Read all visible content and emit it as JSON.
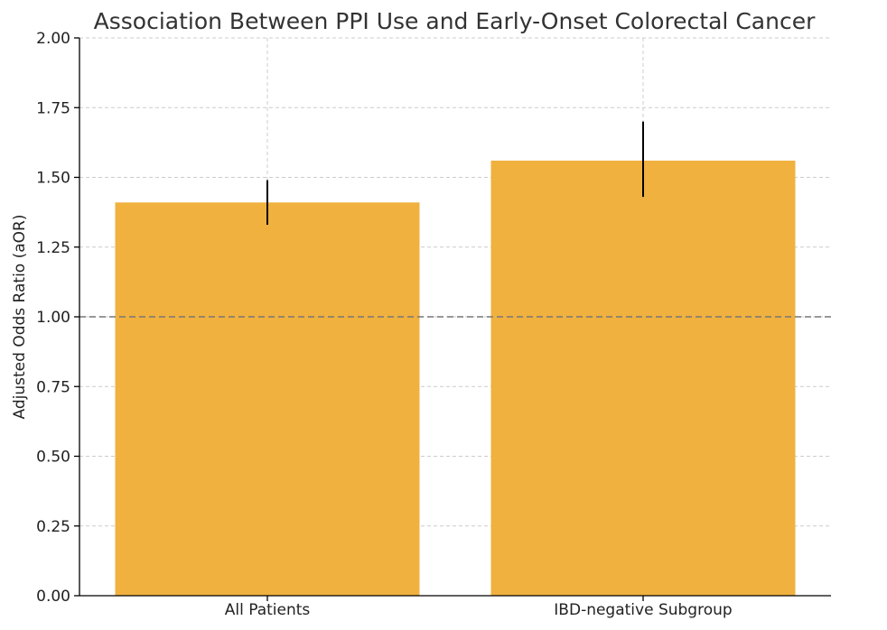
{
  "chart_data": {
    "type": "bar",
    "title": "Association Between PPI Use and Early-Onset Colorectal Cancer",
    "xlabel": "",
    "ylabel": "Adjusted Odds Ratio (aOR)",
    "categories": [
      "All Patients",
      "IBD-negative Subgroup"
    ],
    "values": [
      1.41,
      1.56
    ],
    "error_low": [
      1.33,
      1.43
    ],
    "error_high": [
      1.49,
      1.7
    ],
    "reference_line": 1.0,
    "ylim": [
      0,
      2.0
    ],
    "yticks": [
      "0.00",
      "0.25",
      "0.50",
      "0.75",
      "1.00",
      "1.25",
      "1.50",
      "1.75",
      "2.00"
    ],
    "grid": true,
    "bar_color": "#f0b13f",
    "reference_line_color": "#777777",
    "error_bar_color": "#000000"
  }
}
